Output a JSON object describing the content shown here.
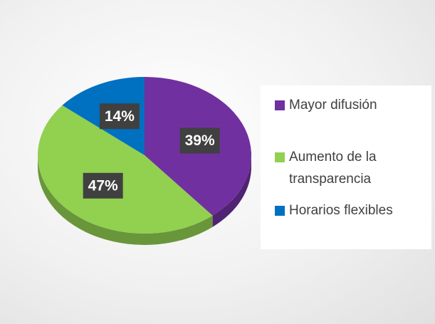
{
  "chart_data": {
    "type": "pie",
    "categories": [
      "Mayor difusión",
      "Aumento de la transparencia",
      "Horarios flexibles"
    ],
    "values": [
      39,
      47,
      14
    ],
    "value_labels": [
      "39%",
      "47%",
      "14%"
    ],
    "colors": [
      "#7030a0",
      "#92d050",
      "#0070c0"
    ],
    "legend": "right"
  }
}
